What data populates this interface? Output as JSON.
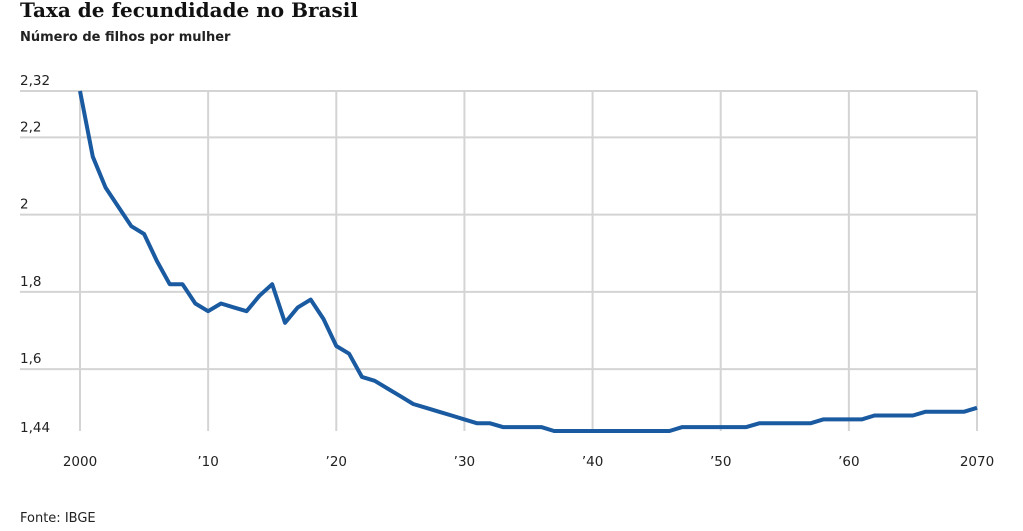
{
  "chart_data": {
    "type": "line",
    "title": "Taxa de fecundidade no Brasil",
    "subtitle": "Número de filhos por mulher",
    "source": "Fonte: IBGE",
    "xlabel": "",
    "ylabel": "",
    "xlim": [
      2000,
      2070
    ],
    "ylim": [
      1.44,
      2.32
    ],
    "grid": true,
    "color": "#1a5aa0",
    "x_ticks": [
      {
        "v": 2000,
        "label": "2000"
      },
      {
        "v": 2010,
        "label": "’10"
      },
      {
        "v": 2020,
        "label": "’20"
      },
      {
        "v": 2030,
        "label": "’30"
      },
      {
        "v": 2040,
        "label": "’40"
      },
      {
        "v": 2050,
        "label": "’50"
      },
      {
        "v": 2060,
        "label": "’60"
      },
      {
        "v": 2070,
        "label": "2070"
      }
    ],
    "y_ticks": [
      {
        "v": 2.32,
        "label": "2,32"
      },
      {
        "v": 2.2,
        "label": "2,2"
      },
      {
        "v": 2.0,
        "label": "2"
      },
      {
        "v": 1.8,
        "label": "1,8"
      },
      {
        "v": 1.6,
        "label": "1,6"
      },
      {
        "v": 1.44,
        "label": "1,44"
      }
    ],
    "series": [
      {
        "name": "Taxa de fecundidade",
        "x": [
          2000,
          2001,
          2002,
          2003,
          2004,
          2005,
          2006,
          2007,
          2008,
          2009,
          2010,
          2011,
          2012,
          2013,
          2014,
          2015,
          2016,
          2017,
          2018,
          2019,
          2020,
          2021,
          2022,
          2023,
          2024,
          2025,
          2026,
          2027,
          2028,
          2029,
          2030,
          2031,
          2032,
          2033,
          2034,
          2035,
          2036,
          2037,
          2038,
          2039,
          2040,
          2041,
          2042,
          2043,
          2044,
          2045,
          2046,
          2047,
          2048,
          2049,
          2050,
          2051,
          2052,
          2053,
          2054,
          2055,
          2056,
          2057,
          2058,
          2059,
          2060,
          2061,
          2062,
          2063,
          2064,
          2065,
          2066,
          2067,
          2068,
          2069,
          2070
        ],
        "values": [
          2.32,
          2.15,
          2.07,
          2.02,
          1.97,
          1.95,
          1.88,
          1.82,
          1.82,
          1.77,
          1.75,
          1.77,
          1.76,
          1.75,
          1.79,
          1.82,
          1.72,
          1.76,
          1.78,
          1.73,
          1.66,
          1.64,
          1.58,
          1.57,
          1.55,
          1.53,
          1.51,
          1.5,
          1.49,
          1.48,
          1.47,
          1.46,
          1.46,
          1.45,
          1.45,
          1.45,
          1.45,
          1.44,
          1.44,
          1.44,
          1.44,
          1.44,
          1.44,
          1.44,
          1.44,
          1.44,
          1.44,
          1.45,
          1.45,
          1.45,
          1.45,
          1.45,
          1.45,
          1.46,
          1.46,
          1.46,
          1.46,
          1.46,
          1.47,
          1.47,
          1.47,
          1.47,
          1.48,
          1.48,
          1.48,
          1.48,
          1.49,
          1.49,
          1.49,
          1.49,
          1.5
        ]
      }
    ]
  }
}
